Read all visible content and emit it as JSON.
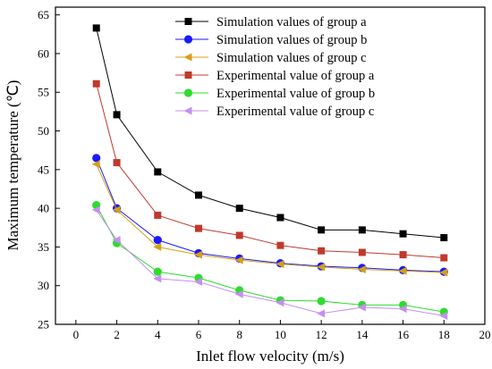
{
  "chart_data": {
    "type": "line",
    "xlabel": "Inlet flow velocity (m/s)",
    "ylabel": "Maximum temperature (℃)",
    "xlim": [
      -1,
      20
    ],
    "ylim": [
      25,
      66
    ],
    "xticks": [
      0,
      2,
      4,
      6,
      8,
      10,
      12,
      14,
      16,
      18,
      20
    ],
    "yticks": [
      25,
      30,
      35,
      40,
      45,
      50,
      55,
      60,
      65
    ],
    "grid": false,
    "legend_position": "top-right",
    "x": [
      1,
      2,
      4,
      6,
      8,
      10,
      12,
      14,
      16,
      18
    ],
    "series": [
      {
        "name": "Simulation values of group a",
        "marker": "square",
        "color": "#000000",
        "values": [
          63.3,
          52.1,
          44.7,
          41.7,
          40.0,
          38.8,
          37.2,
          37.2,
          36.7,
          36.2
        ]
      },
      {
        "name": "Simulation values of group b",
        "marker": "circle",
        "color": "#1a1aff",
        "values": [
          46.5,
          40.0,
          35.9,
          34.2,
          33.5,
          32.9,
          32.5,
          32.3,
          32.0,
          31.8
        ]
      },
      {
        "name": "Simulation values of group c",
        "marker": "triangle-left",
        "color": "#d4a017",
        "values": [
          45.7,
          39.8,
          35.0,
          34.0,
          33.3,
          32.8,
          32.4,
          32.1,
          31.9,
          31.7
        ]
      },
      {
        "name": "Experimental value of group a",
        "marker": "square",
        "color": "#c0392b",
        "values": [
          56.1,
          45.9,
          39.1,
          37.4,
          36.5,
          35.2,
          34.5,
          34.3,
          34.0,
          33.6
        ]
      },
      {
        "name": "Experimental value of group b",
        "marker": "circle",
        "color": "#2ddc2d",
        "values": [
          40.4,
          35.5,
          31.8,
          31.0,
          29.4,
          28.1,
          28.0,
          27.5,
          27.5,
          26.6
        ]
      },
      {
        "name": "Experimental value of group c",
        "marker": "triangle-left",
        "color": "#c48ff0",
        "values": [
          39.8,
          35.9,
          30.9,
          30.5,
          28.9,
          27.8,
          26.4,
          27.2,
          27.0,
          26.1
        ]
      }
    ]
  }
}
